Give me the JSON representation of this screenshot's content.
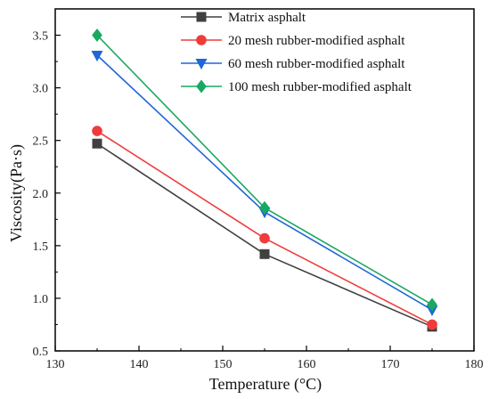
{
  "chart_data": {
    "type": "line",
    "title": "",
    "xlabel": "Temperature (°C)",
    "ylabel": "Viscosity(Pa·s)",
    "xlim": [
      130,
      180
    ],
    "ylim": [
      0.5,
      3.75
    ],
    "xticks": [
      130,
      140,
      150,
      160,
      170,
      180
    ],
    "yticks": [
      0.5,
      1.0,
      1.5,
      2.0,
      2.5,
      3.0,
      3.5
    ],
    "xtick_labels": [
      "130",
      "140",
      "150",
      "160",
      "170",
      "180"
    ],
    "ytick_labels": [
      "0.5",
      "1.0",
      "1.5",
      "2.0",
      "2.5",
      "3.0",
      "3.5"
    ],
    "x": [
      135,
      155,
      175
    ],
    "grid": false,
    "legend_position": "top-right",
    "series": [
      {
        "name": "Matrix asphalt",
        "values": [
          2.47,
          1.42,
          0.73
        ],
        "color": "#404040",
        "marker": "square"
      },
      {
        "name": "20 mesh rubber-modified asphalt",
        "values": [
          2.59,
          1.57,
          0.75
        ],
        "color": "#f03b3b",
        "marker": "circle"
      },
      {
        "name": "60 mesh rubber-modified asphalt",
        "values": [
          3.31,
          1.82,
          0.89
        ],
        "color": "#1f66d6",
        "marker": "triangle-down"
      },
      {
        "name": "100 mesh rubber-modified asphalt",
        "values": [
          3.5,
          1.86,
          0.94
        ],
        "color": "#1aa860",
        "marker": "diamond"
      }
    ]
  }
}
